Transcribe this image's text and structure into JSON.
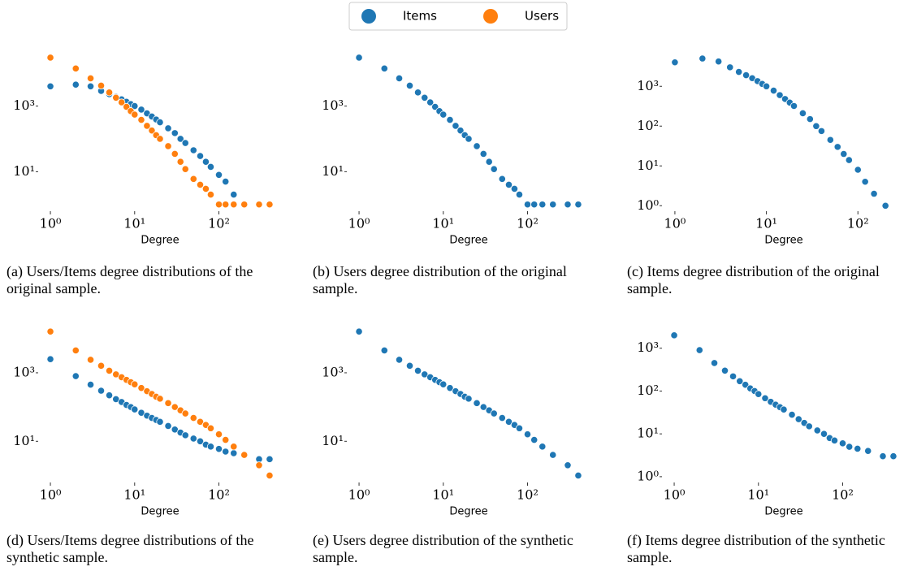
{
  "chart_data": [
    {
      "type": "scatter",
      "caption": "(a) Users/Items degree distributions of the original sample.",
      "xlabel": "Degree",
      "log_x": true,
      "log_y": true,
      "x": [
        1,
        2,
        3,
        4,
        5,
        6,
        7,
        8,
        9,
        10,
        12,
        14,
        16,
        18,
        20,
        25,
        30,
        35,
        40,
        50,
        60,
        70,
        80,
        100,
        120,
        150,
        200,
        300,
        400
      ],
      "series": [
        {
          "name": "Items",
          "color": "#1f77b4",
          "values": [
            4000,
            4500,
            4000,
            2900,
            2300,
            1900,
            1600,
            1350,
            1150,
            1000,
            780,
            600,
            480,
            390,
            320,
            210,
            150,
            100,
            75,
            45,
            30,
            20,
            14,
            8,
            5,
            2,
            null,
            null,
            null
          ]
        },
        {
          "name": "Users",
          "color": "#ff7f0e",
          "values": [
            30000,
            14000,
            7000,
            4200,
            2600,
            1800,
            1300,
            950,
            700,
            550,
            380,
            250,
            180,
            130,
            100,
            60,
            35,
            20,
            12,
            6,
            4,
            3,
            2,
            1,
            1,
            1,
            1,
            1,
            1
          ]
        }
      ],
      "xlim": [
        0.8,
        500
      ],
      "ylim": [
        0.7,
        50000
      ],
      "xticks": [
        {
          "value": 1,
          "label": "10⁰"
        },
        {
          "value": 10,
          "label": "10¹"
        },
        {
          "value": 100,
          "label": "10²"
        }
      ],
      "yticks": [
        {
          "value": 10,
          "label": "10¹"
        },
        {
          "value": 1000,
          "label": "10³"
        }
      ]
    },
    {
      "type": "scatter",
      "caption": "(b) Users degree distribution of the original sample.",
      "xlabel": "Degree",
      "log_x": true,
      "log_y": true,
      "x": [
        1,
        2,
        3,
        4,
        5,
        6,
        7,
        8,
        9,
        10,
        12,
        14,
        16,
        18,
        20,
        25,
        30,
        35,
        40,
        50,
        60,
        70,
        80,
        100,
        120,
        150,
        200,
        300,
        400
      ],
      "series": [
        {
          "name": "Users",
          "color": "#1f77b4",
          "values": [
            30000,
            14000,
            7000,
            4200,
            2600,
            1800,
            1300,
            950,
            700,
            550,
            380,
            250,
            180,
            130,
            100,
            60,
            35,
            20,
            12,
            6,
            4,
            3,
            2,
            1,
            1,
            1,
            1,
            1,
            1
          ]
        }
      ],
      "xlim": [
        0.8,
        500
      ],
      "ylim": [
        0.7,
        50000
      ],
      "xticks": [
        {
          "value": 1,
          "label": "10⁰"
        },
        {
          "value": 10,
          "label": "10¹"
        },
        {
          "value": 100,
          "label": "10²"
        }
      ],
      "yticks": [
        {
          "value": 10,
          "label": "10¹"
        },
        {
          "value": 1000,
          "label": "10³"
        }
      ]
    },
    {
      "type": "scatter",
      "caption": "(c) Items degree distribution of the original sample.",
      "xlabel": "Degree",
      "log_x": true,
      "log_y": true,
      "x": [
        1,
        2,
        3,
        4,
        5,
        6,
        7,
        8,
        9,
        10,
        12,
        14,
        16,
        18,
        20,
        25,
        30,
        35,
        40,
        50,
        60,
        70,
        80,
        100,
        120,
        150,
        200,
        300,
        400
      ],
      "series": [
        {
          "name": "Items",
          "color": "#1f77b4",
          "values": [
            4000,
            5000,
            4200,
            3000,
            2300,
            1900,
            1600,
            1350,
            1150,
            1000,
            780,
            600,
            480,
            390,
            320,
            210,
            150,
            100,
            75,
            45,
            30,
            20,
            14,
            8,
            4,
            2,
            1,
            null,
            null
          ]
        }
      ],
      "xlim": [
        0.8,
        300
      ],
      "ylim": [
        0.8,
        8000
      ],
      "xticks": [
        {
          "value": 1,
          "label": "10⁰"
        },
        {
          "value": 10,
          "label": "10¹"
        },
        {
          "value": 100,
          "label": "10²"
        }
      ],
      "yticks": [
        {
          "value": 1,
          "label": "10⁰"
        },
        {
          "value": 10,
          "label": "10¹"
        },
        {
          "value": 100,
          "label": "10²"
        },
        {
          "value": 1000,
          "label": "10³"
        }
      ]
    },
    {
      "type": "scatter",
      "caption": "(d) Users/Items degree distributions of the synthetic sample.",
      "xlabel": "Degree",
      "log_x": true,
      "log_y": true,
      "x": [
        1,
        2,
        3,
        4,
        5,
        6,
        7,
        8,
        9,
        10,
        12,
        14,
        16,
        18,
        20,
        25,
        30,
        35,
        40,
        50,
        60,
        70,
        80,
        100,
        120,
        150,
        200,
        300,
        400
      ],
      "series": [
        {
          "name": "Items",
          "color": "#1f77b4",
          "values": [
            2500,
            800,
            450,
            300,
            220,
            170,
            140,
            115,
            100,
            85,
            68,
            56,
            48,
            42,
            37,
            28,
            22,
            18,
            15,
            12,
            10,
            8,
            7,
            6,
            5,
            4.5,
            4,
            3,
            3
          ]
        },
        {
          "name": "Users",
          "color": "#ff7f0e",
          "values": [
            16000,
            4500,
            2400,
            1600,
            1150,
            900,
            740,
            620,
            530,
            460,
            360,
            290,
            240,
            200,
            175,
            130,
            100,
            80,
            65,
            48,
            37,
            30,
            24,
            16,
            11,
            7,
            4,
            2,
            1
          ]
        }
      ],
      "xlim": [
        0.8,
        500
      ],
      "ylim": [
        0.7,
        25000
      ],
      "xticks": [
        {
          "value": 1,
          "label": "10⁰"
        },
        {
          "value": 10,
          "label": "10¹"
        },
        {
          "value": 100,
          "label": "10²"
        }
      ],
      "yticks": [
        {
          "value": 10,
          "label": "10¹"
        },
        {
          "value": 1000,
          "label": "10³"
        }
      ]
    },
    {
      "type": "scatter",
      "caption": "(e) Users degree distribution of the synthetic sample.",
      "xlabel": "Degree",
      "log_x": true,
      "log_y": true,
      "x": [
        1,
        2,
        3,
        4,
        5,
        6,
        7,
        8,
        9,
        10,
        12,
        14,
        16,
        18,
        20,
        25,
        30,
        35,
        40,
        50,
        60,
        70,
        80,
        100,
        120,
        150,
        200,
        300,
        400
      ],
      "series": [
        {
          "name": "Users",
          "color": "#1f77b4",
          "values": [
            16000,
            4500,
            2400,
            1600,
            1150,
            900,
            740,
            620,
            530,
            460,
            360,
            290,
            240,
            200,
            175,
            130,
            100,
            80,
            65,
            48,
            37,
            30,
            24,
            16,
            11,
            7,
            4,
            2,
            1
          ]
        }
      ],
      "xlim": [
        0.8,
        500
      ],
      "ylim": [
        0.7,
        25000
      ],
      "xticks": [
        {
          "value": 1,
          "label": "10⁰"
        },
        {
          "value": 10,
          "label": "10¹"
        },
        {
          "value": 100,
          "label": "10²"
        }
      ],
      "yticks": [
        {
          "value": 10,
          "label": "10¹"
        },
        {
          "value": 1000,
          "label": "10³"
        }
      ]
    },
    {
      "type": "scatter",
      "caption": "(f) Items degree distribution of the synthetic sample.",
      "xlabel": "Degree",
      "log_x": true,
      "log_y": true,
      "x": [
        1,
        2,
        3,
        4,
        5,
        6,
        7,
        8,
        9,
        10,
        12,
        14,
        16,
        18,
        20,
        25,
        30,
        35,
        40,
        50,
        60,
        70,
        80,
        100,
        120,
        150,
        200,
        300,
        400
      ],
      "series": [
        {
          "name": "Items",
          "color": "#1f77b4",
          "values": [
            2000,
            900,
            450,
            300,
            220,
            170,
            140,
            115,
            100,
            85,
            68,
            56,
            48,
            42,
            37,
            28,
            22,
            18,
            15,
            12,
            10,
            8,
            7,
            6,
            5,
            4.5,
            4,
            3,
            3
          ]
        }
      ],
      "xlim": [
        0.8,
        500
      ],
      "ylim": [
        0.8,
        3500
      ],
      "xticks": [
        {
          "value": 1,
          "label": "10⁰"
        },
        {
          "value": 10,
          "label": "10¹"
        },
        {
          "value": 100,
          "label": "10²"
        }
      ],
      "yticks": [
        {
          "value": 1,
          "label": "10⁰"
        },
        {
          "value": 10,
          "label": "10¹"
        },
        {
          "value": 100,
          "label": "10²"
        },
        {
          "value": 1000,
          "label": "10³"
        }
      ]
    }
  ]
}
